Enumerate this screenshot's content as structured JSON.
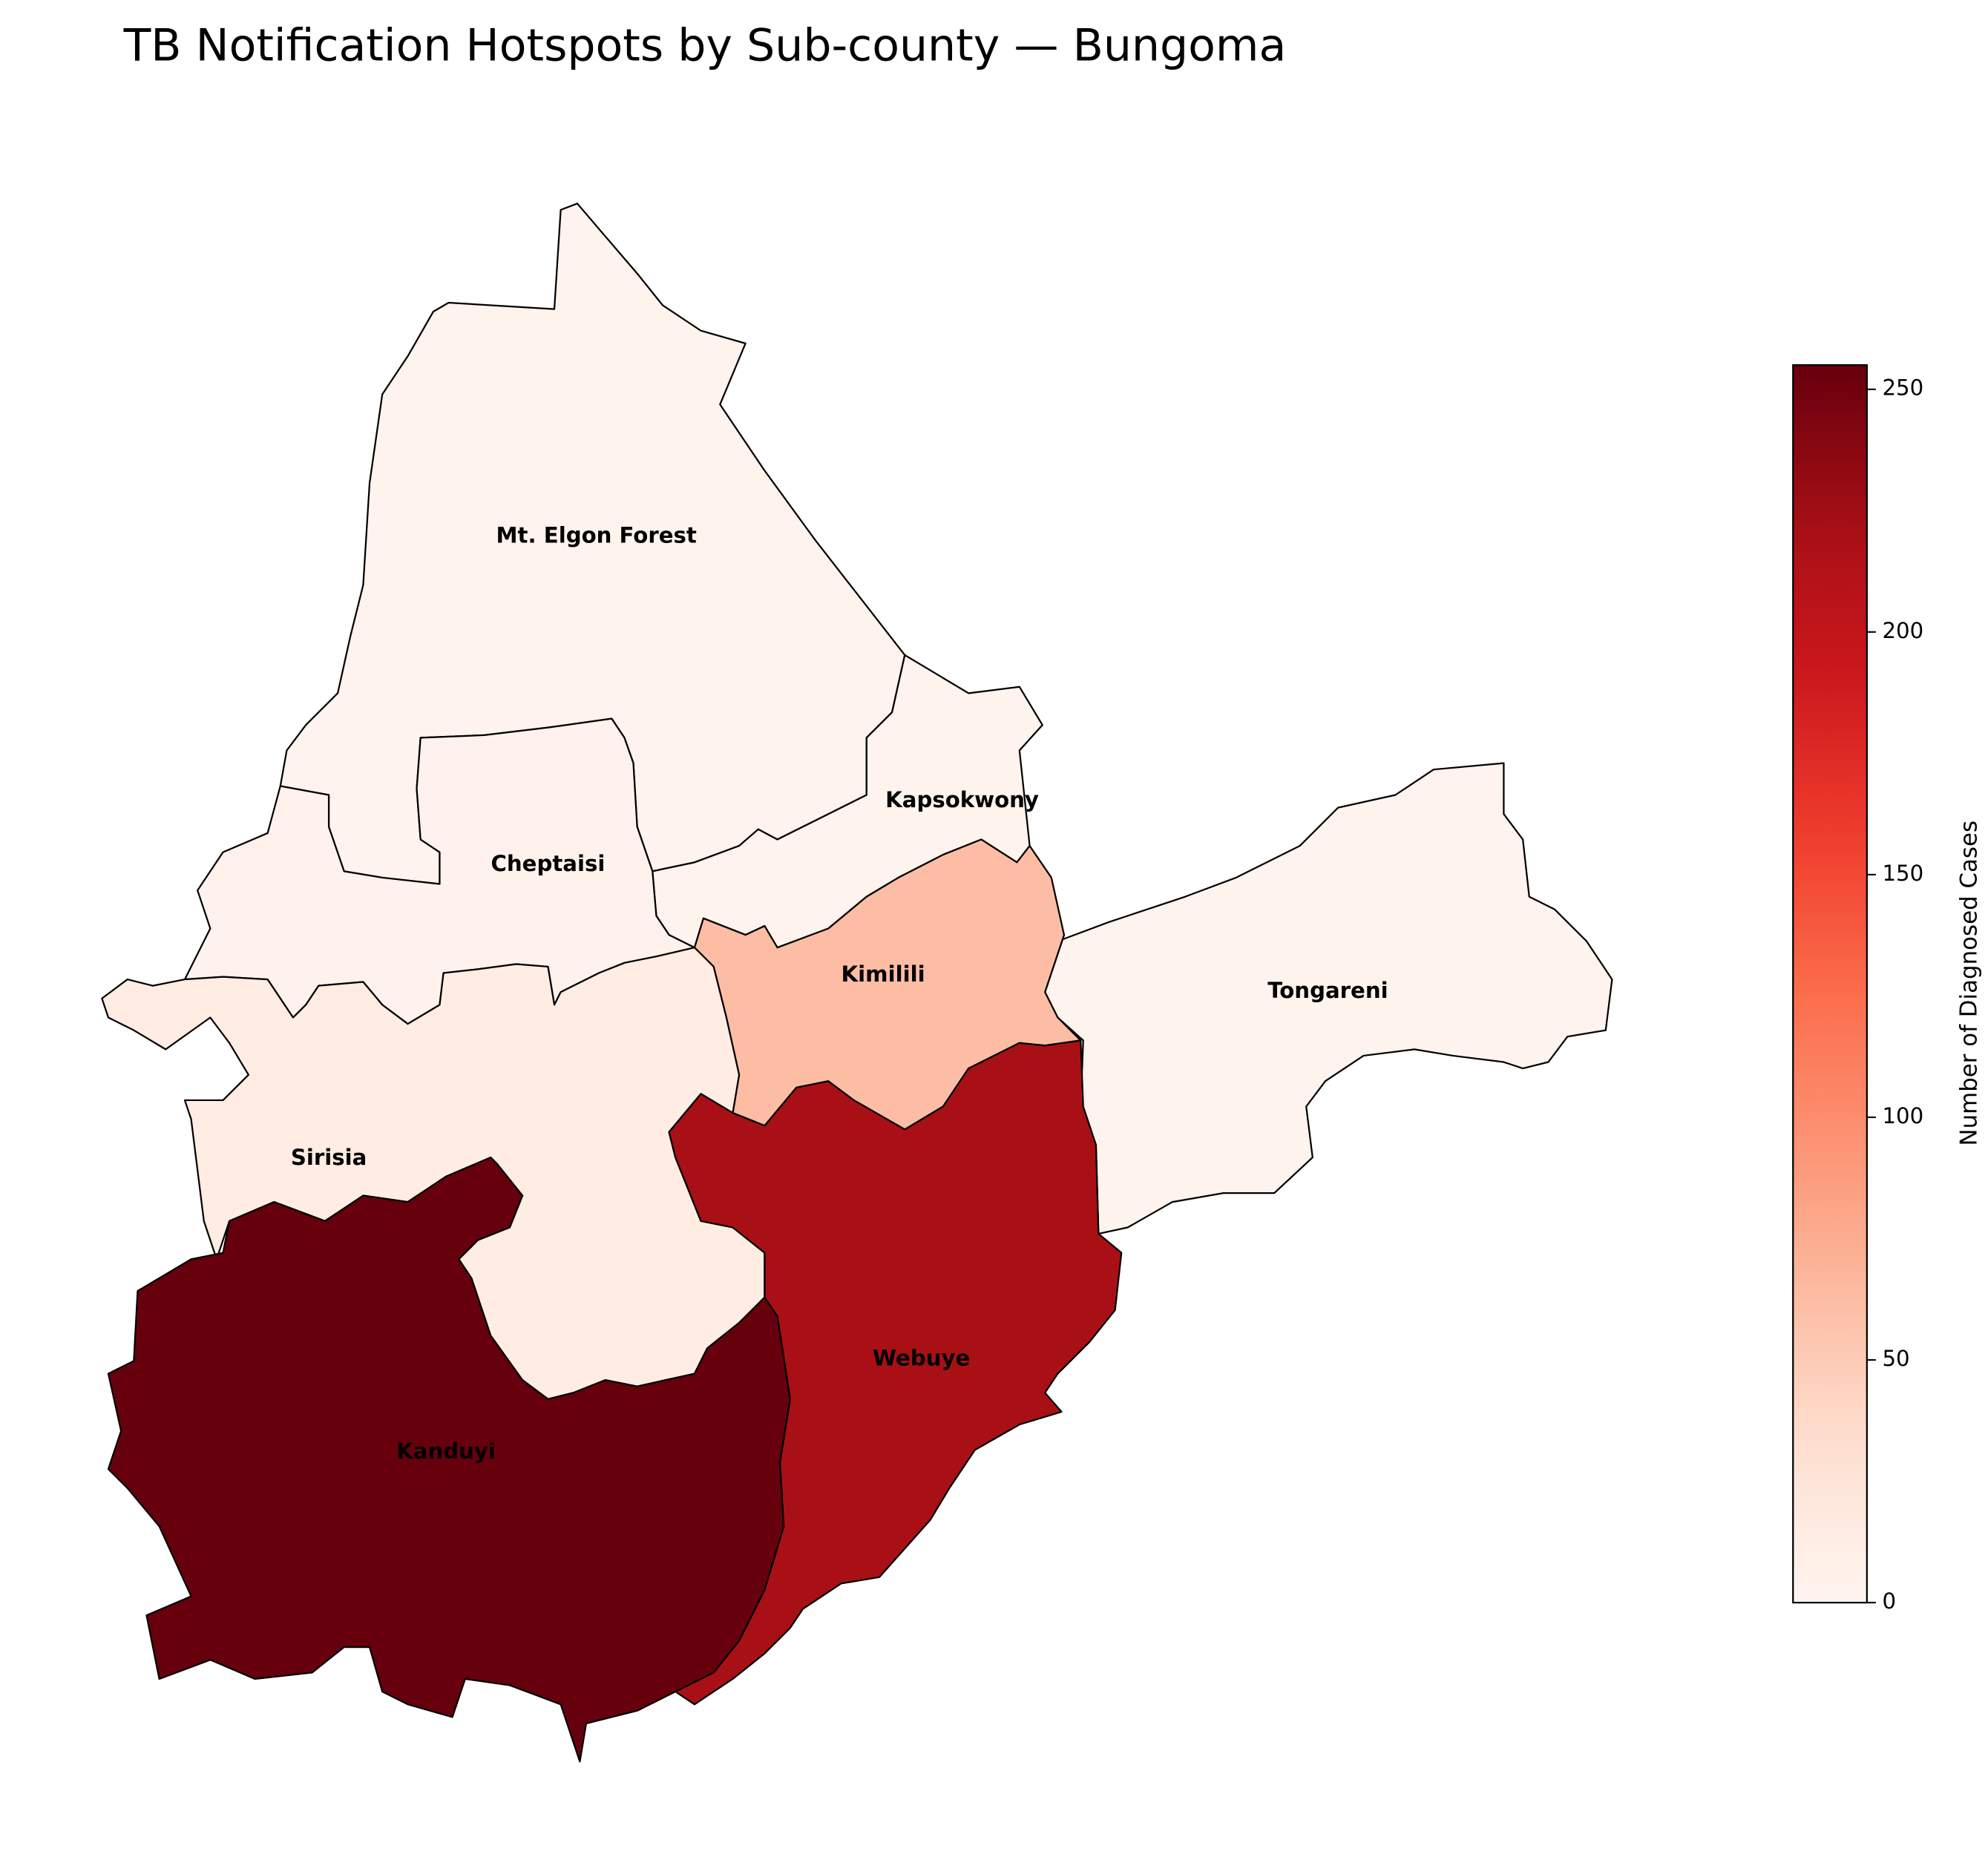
{
  "chart_data": {
    "type": "choropleth",
    "title": "TB Notification Hotspots by Sub-county — Bungoma",
    "colormap": "Reds",
    "colorbar": {
      "label": "Number of Diagnosed Cases",
      "range": [
        0,
        255
      ],
      "ticks": [
        0,
        50,
        100,
        150,
        200,
        250
      ],
      "tick_labels": [
        "0",
        "50",
        "100",
        "150",
        "200",
        "250"
      ],
      "placement": "right"
    },
    "regions": [
      {
        "name": "Mt. Elgon Forest",
        "value": 3
      },
      {
        "name": "Kapsokwony",
        "value": 3
      },
      {
        "name": "Cheptaisi",
        "value": 4
      },
      {
        "name": "Tongareni",
        "value": 3
      },
      {
        "name": "Kimilili",
        "value": 62
      },
      {
        "name": "Sirisia",
        "value": 14
      },
      {
        "name": "Webuye",
        "value": 220
      },
      {
        "name": "Kanduyi",
        "value": 255
      }
    ]
  }
}
